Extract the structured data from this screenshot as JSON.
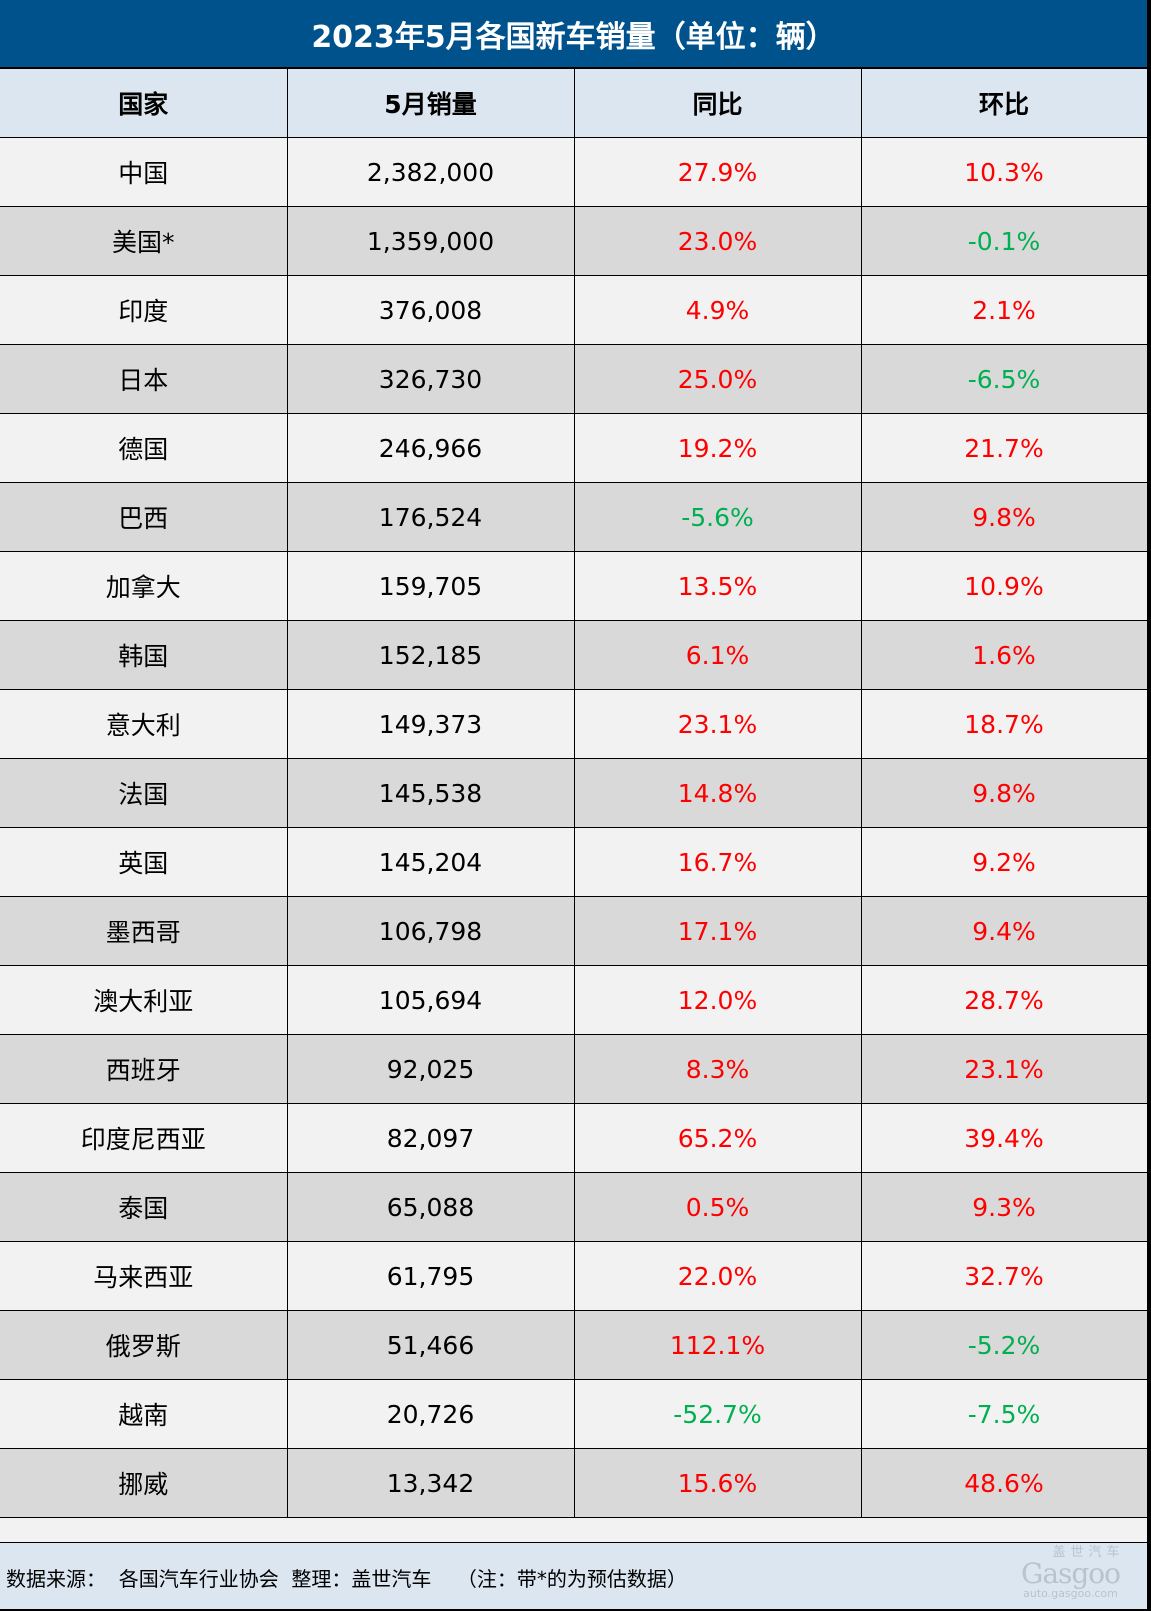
{
  "title": "2023年5月各国新车销量（单位：辆）",
  "headers": [
    "国家",
    "5月销量",
    "同比",
    "环比"
  ],
  "rows": [
    {
      "country": "中国",
      "sales": "2,382,000",
      "yoy": "27.9%",
      "mom": "10.3%"
    },
    {
      "country": "美国*",
      "sales": "1,359,000",
      "yoy": "23.0%",
      "mom": "-0.1%"
    },
    {
      "country": "印度",
      "sales": "376,008",
      "yoy": "4.9%",
      "mom": "2.1%"
    },
    {
      "country": "日本",
      "sales": "326,730",
      "yoy": "25.0%",
      "mom": "-6.5%"
    },
    {
      "country": "德国",
      "sales": "246,966",
      "yoy": "19.2%",
      "mom": "21.7%"
    },
    {
      "country": "巴西",
      "sales": "176,524",
      "yoy": "-5.6%",
      "mom": "9.8%"
    },
    {
      "country": "加拿大",
      "sales": "159,705",
      "yoy": "13.5%",
      "mom": "10.9%"
    },
    {
      "country": "韩国",
      "sales": "152,185",
      "yoy": "6.1%",
      "mom": "1.6%"
    },
    {
      "country": "意大利",
      "sales": "149,373",
      "yoy": "23.1%",
      "mom": "18.7%"
    },
    {
      "country": "法国",
      "sales": "145,538",
      "yoy": "14.8%",
      "mom": "9.8%"
    },
    {
      "country": "英国",
      "sales": "145,204",
      "yoy": "16.7%",
      "mom": "9.2%"
    },
    {
      "country": "墨西哥",
      "sales": "106,798",
      "yoy": "17.1%",
      "mom": "9.4%"
    },
    {
      "country": "澳大利亚",
      "sales": "105,694",
      "yoy": "12.0%",
      "mom": "28.7%"
    },
    {
      "country": "西班牙",
      "sales": "92,025",
      "yoy": "8.3%",
      "mom": "23.1%"
    },
    {
      "country": "印度尼西亚",
      "sales": "82,097",
      "yoy": "65.2%",
      "mom": "39.4%"
    },
    {
      "country": "泰国",
      "sales": "65,088",
      "yoy": "0.5%",
      "mom": "9.3%"
    },
    {
      "country": "马来西亚",
      "sales": "61,795",
      "yoy": "22.0%",
      "mom": "32.7%"
    },
    {
      "country": "俄罗斯",
      "sales": "51,466",
      "yoy": "112.1%",
      "mom": "-5.2%"
    },
    {
      "country": "越南",
      "sales": "20,726",
      "yoy": "-52.7%",
      "mom": "-7.5%"
    },
    {
      "country": "挪威",
      "sales": "13,342",
      "yoy": "15.6%",
      "mom": "48.6%"
    }
  ],
  "footer": {
    "text": "数据来源：  各国汽车行业协会  整理：盖世汽车    （注：带*的为预估数据）",
    "logo_cn": "盖世汽车",
    "logo_en": "Gasgoo",
    "logo_url": "auto.gasgoo.com"
  },
  "colors": {
    "title_bg": "#00528c",
    "header_bg": "#dce6f1",
    "row_light": "#f2f2f2",
    "row_dark": "#d9d9d9",
    "positive": "#ff0000",
    "negative": "#00b050"
  }
}
